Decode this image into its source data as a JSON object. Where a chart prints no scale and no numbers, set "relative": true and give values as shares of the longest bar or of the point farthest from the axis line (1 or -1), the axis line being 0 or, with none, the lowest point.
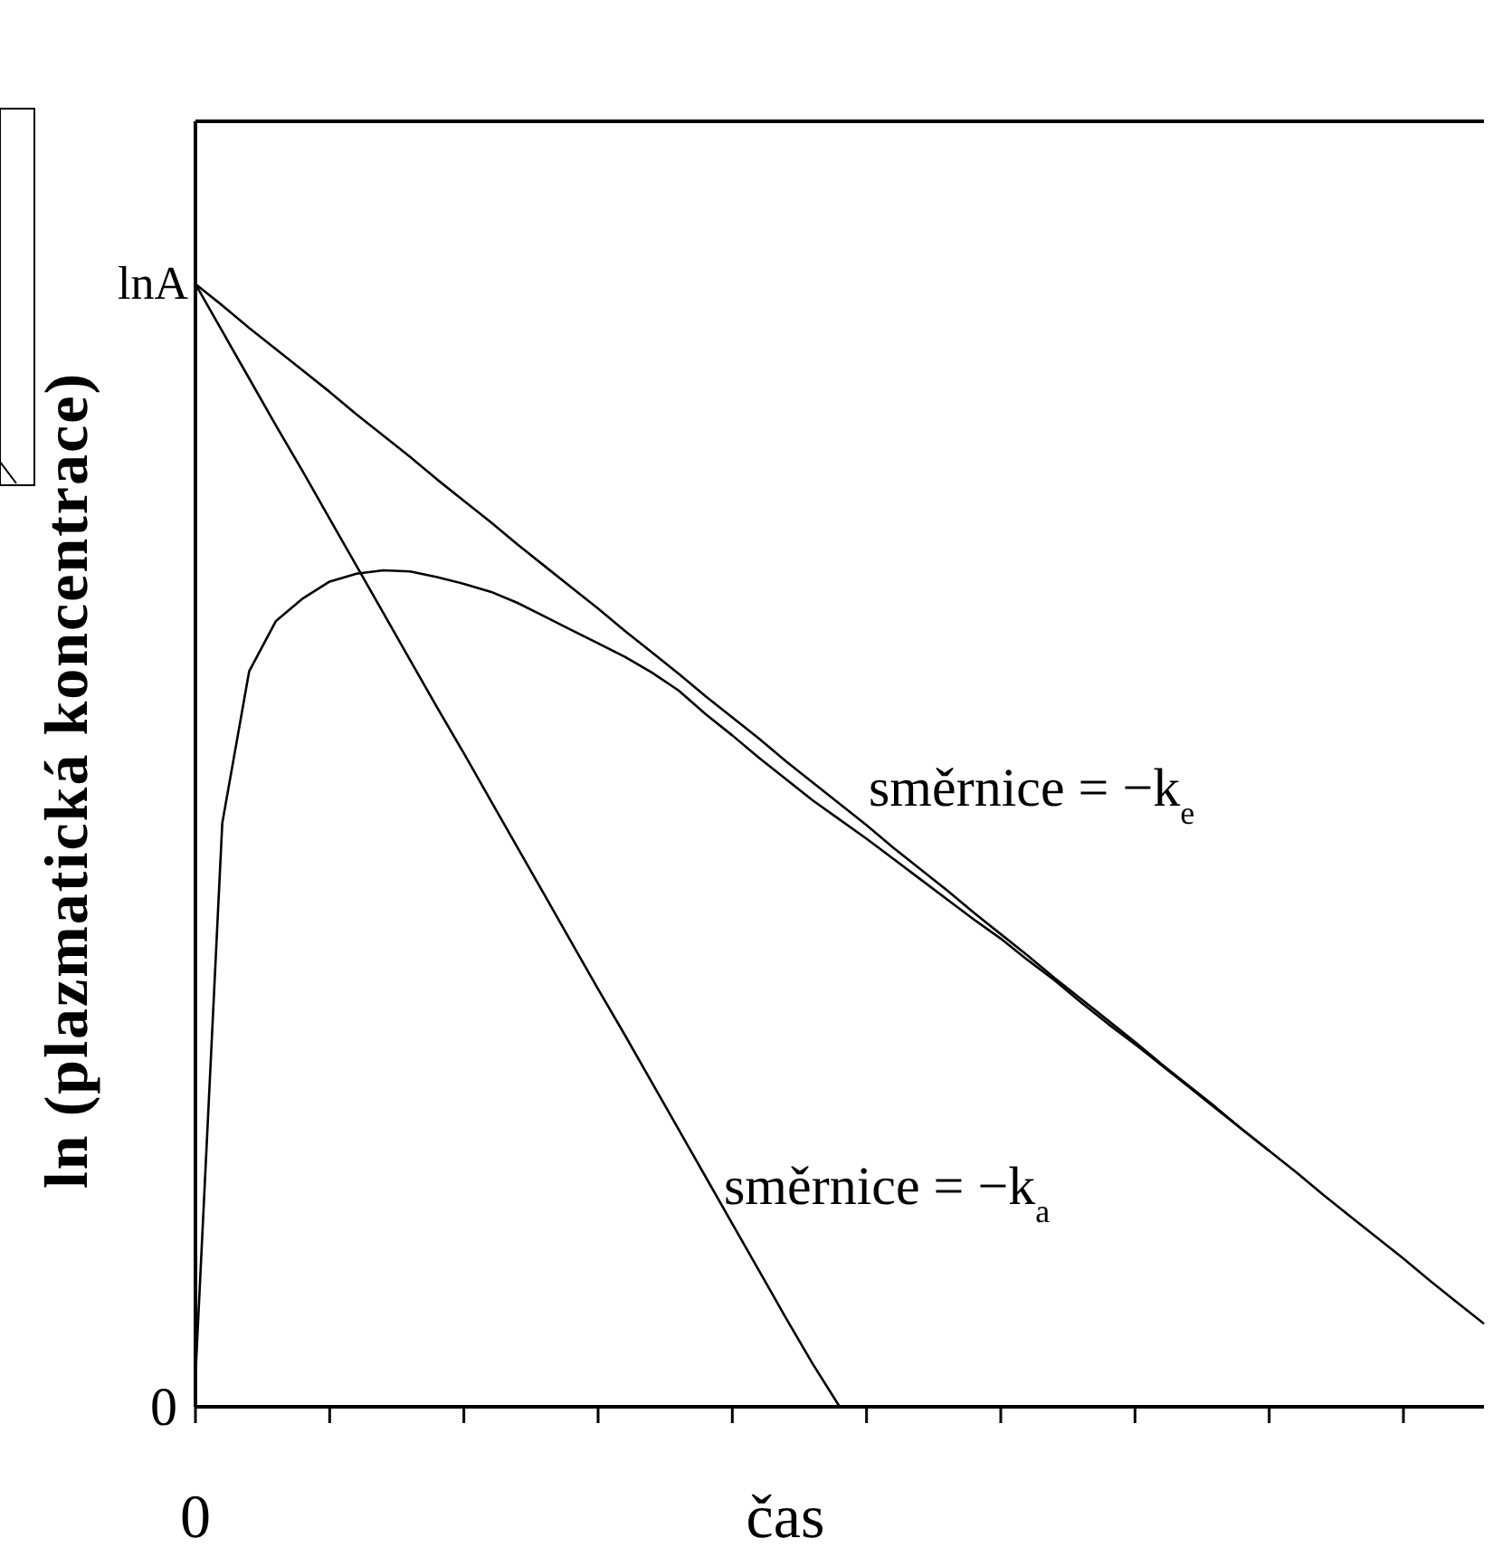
{
  "chart_data": {
    "type": "line",
    "relative": true,
    "xlabel": "čas",
    "ylabel": "ln (plazmatická koncentrace)",
    "categories": [
      null,
      null,
      null,
      null,
      null,
      null,
      null,
      null,
      null,
      null,
      null,
      null,
      null,
      null,
      null,
      null,
      null,
      null,
      null,
      null,
      null,
      null,
      null,
      null,
      null,
      null,
      null,
      null,
      null,
      null,
      null,
      null,
      null,
      null,
      null,
      null,
      null,
      null,
      null,
      null,
      null,
      null,
      null,
      null,
      null,
      null,
      null,
      null,
      null
    ],
    "series": [
      {
        "color": "#000000",
        "values": [
          1,
          0.981,
          0.961,
          0.942,
          0.923,
          0.904,
          0.884,
          0.865,
          0.846,
          0.826,
          0.807,
          0.788,
          0.768,
          0.749,
          0.73,
          0.711,
          0.691,
          0.672,
          0.653,
          0.633,
          0.614,
          0.595,
          0.575,
          0.556,
          0.537,
          0.518,
          0.498,
          0.479,
          0.46,
          0.44,
          0.421,
          0.402,
          0.382,
          0.363,
          0.344,
          0.325,
          0.305,
          0.286,
          0.267,
          0.247,
          0.228,
          0.209,
          0.189,
          0.17,
          0.151,
          0.132,
          0.112,
          0.093,
          0.074
        ]
      },
      {
        "color": "#000000",
        "values": [
          1,
          0.958,
          0.916,
          0.874,
          0.833,
          0.791,
          0.749,
          0.707,
          0.665,
          0.623,
          0.582,
          0.54,
          0.498,
          0.456,
          0.414,
          0.372,
          0.331,
          0.289,
          0.247,
          0.205,
          0.163,
          0.121,
          0.079,
          0.038,
          0,
          null,
          null,
          null,
          null,
          null,
          null,
          null,
          null,
          null,
          null,
          null,
          null,
          null,
          null,
          null,
          null,
          null,
          null,
          null,
          null,
          null,
          null,
          null,
          null
        ]
      },
      {
        "color": "#000000",
        "values": [
          0.027,
          0.52,
          0.655,
          0.7,
          0.72,
          0.735,
          0.742,
          0.745,
          0.744,
          0.739,
          0.733,
          0.726,
          0.716,
          0.704,
          0.692,
          0.68,
          0.668,
          0.654,
          0.638,
          0.617,
          0.598,
          0.578,
          0.559,
          0.54,
          0.523,
          0.506,
          0.488,
          0.47,
          0.452,
          0.434,
          0.417,
          0.398,
          0.38,
          0.36,
          0.341,
          0.323,
          0.304,
          0.285,
          0.266,
          0.247,
          0.228,
          null,
          null,
          null,
          null,
          null,
          null,
          null,
          null
        ]
      }
    ],
    "annotations": [
      "lnA",
      "0",
      "směrnice = −k$_{e}$",
      "směrnice = −k$_{a}$",
      "0"
    ],
    "grid": false,
    "marker": "none",
    "line_style": "solid"
  }
}
